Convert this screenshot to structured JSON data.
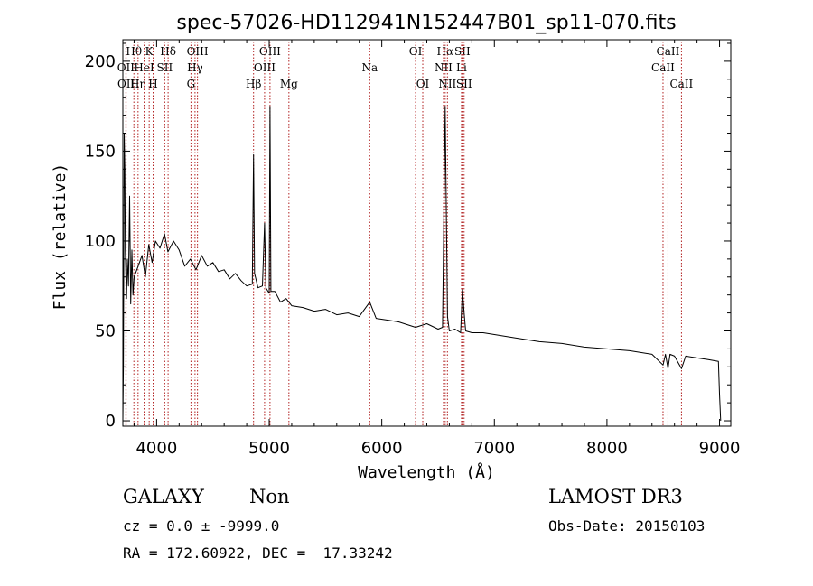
{
  "chart_data": {
    "type": "line",
    "title": "spec-57026-HD112941N152447B01_sp11-070.fits",
    "xlabel": "Wavelength (Å)",
    "ylabel": "Flux (relative)",
    "xlim": [
      3700,
      9100
    ],
    "ylim": [
      -3,
      212
    ],
    "x_ticks": [
      4000,
      5000,
      6000,
      7000,
      8000,
      9000
    ],
    "y_ticks": [
      0,
      50,
      100,
      150,
      200
    ],
    "x_tick_labels": [
      "4000",
      "5000",
      "6000",
      "7000",
      "8000",
      "9000"
    ],
    "y_tick_labels": [
      "0",
      "50",
      "100",
      "150",
      "200"
    ],
    "series": [
      {
        "name": "flux",
        "x": [
          3700,
          3705,
          3712,
          3718,
          3722,
          3727,
          3733,
          3740,
          3750,
          3760,
          3770,
          3780,
          3790,
          3800,
          3830,
          3870,
          3900,
          3930,
          3960,
          3990,
          4030,
          4070,
          4100,
          4150,
          4200,
          4250,
          4300,
          4350,
          4400,
          4450,
          4500,
          4550,
          4600,
          4650,
          4700,
          4750,
          4800,
          4850,
          4861,
          4870,
          4900,
          4940,
          4959,
          4970,
          5000,
          5007,
          5015,
          5050,
          5100,
          5150,
          5200,
          5300,
          5400,
          5500,
          5600,
          5700,
          5800,
          5893,
          5950,
          6050,
          6150,
          6250,
          6300,
          6400,
          6500,
          6540,
          6563,
          6584,
          6600,
          6650,
          6700,
          6716,
          6731,
          6745,
          6800,
          6900,
          7000,
          7200,
          7400,
          7600,
          7800,
          8000,
          8200,
          8400,
          8498,
          8520,
          8542,
          8560,
          8600,
          8662,
          8700,
          8800,
          8900,
          8990,
          9000,
          9010
        ],
        "y": [
          0,
          30,
          160,
          140,
          95,
          80,
          68,
          90,
          75,
          125,
          65,
          95,
          70,
          80,
          85,
          92,
          80,
          98,
          88,
          100,
          96,
          104,
          94,
          100,
          95,
          86,
          90,
          84,
          92,
          86,
          88,
          83,
          84,
          79,
          82,
          78,
          75,
          76,
          148,
          82,
          74,
          75,
          110,
          74,
          71,
          175,
          72,
          72,
          66,
          68,
          64,
          63,
          61,
          62,
          59,
          60,
          58,
          66,
          57,
          56,
          55,
          53,
          52,
          54,
          51,
          52,
          175,
          58,
          50,
          51,
          49,
          73,
          60,
          50,
          49,
          49,
          48,
          46,
          44,
          43,
          41,
          40,
          39,
          37,
          31,
          37,
          29,
          37,
          36,
          29,
          36,
          35,
          34,
          33,
          15,
          0
        ]
      }
    ],
    "line_markers": [
      {
        "label": "Hθ",
        "wavelength": 3798,
        "row": 0
      },
      {
        "label": "OII",
        "wavelength": 3727,
        "row": 1
      },
      {
        "label": "OII",
        "wavelength": 3729,
        "row": 2
      },
      {
        "label": "Hη",
        "wavelength": 3835,
        "row": 2
      },
      {
        "label": "HeI",
        "wavelength": 3889,
        "row": 1
      },
      {
        "label": "K",
        "wavelength": 3934,
        "row": 0
      },
      {
        "label": "H",
        "wavelength": 3969,
        "row": 2
      },
      {
        "label": "SII",
        "wavelength": 4072,
        "row": 1
      },
      {
        "label": "Hδ",
        "wavelength": 4102,
        "row": 0
      },
      {
        "label": "G",
        "wavelength": 4305,
        "row": 2
      },
      {
        "label": "Hγ",
        "wavelength": 4341,
        "row": 1
      },
      {
        "label": "OIII",
        "wavelength": 4363,
        "row": 0
      },
      {
        "label": "Hβ",
        "wavelength": 4861,
        "row": 2
      },
      {
        "label": "OIII",
        "wavelength": 4959,
        "row": 1
      },
      {
        "label": "OIII",
        "wavelength": 5007,
        "row": 0
      },
      {
        "label": "Mg",
        "wavelength": 5175,
        "row": 2
      },
      {
        "label": "Na",
        "wavelength": 5893,
        "row": 1
      },
      {
        "label": "OI",
        "wavelength": 6300,
        "row": 0
      },
      {
        "label": "OI",
        "wavelength": 6364,
        "row": 2
      },
      {
        "label": "NII",
        "wavelength": 6548,
        "row": 1
      },
      {
        "label": "Hα",
        "wavelength": 6563,
        "row": 0
      },
      {
        "label": "NII",
        "wavelength": 6583,
        "row": 2
      },
      {
        "label": "Li",
        "wavelength": 6708,
        "row": 1
      },
      {
        "label": "SII",
        "wavelength": 6716,
        "row": 0
      },
      {
        "label": "SII",
        "wavelength": 6731,
        "row": 2
      },
      {
        "label": "CaII",
        "wavelength": 8498,
        "row": 1
      },
      {
        "label": "CaII",
        "wavelength": 8542,
        "row": 0
      },
      {
        "label": "CaII",
        "wavelength": 8662,
        "row": 2
      }
    ],
    "marker_color": "#b22222",
    "line_color": "#000000"
  },
  "info": {
    "class_label": "GALAXY",
    "subclass_label": "Non",
    "survey_label": "LAMOST DR3",
    "cz_text": "cz = 0.0 ± -9999.0",
    "obs_date_text": "Obs-Date: 20150103",
    "radec_text": "RA = 172.60922, DEC =  17.33242"
  }
}
